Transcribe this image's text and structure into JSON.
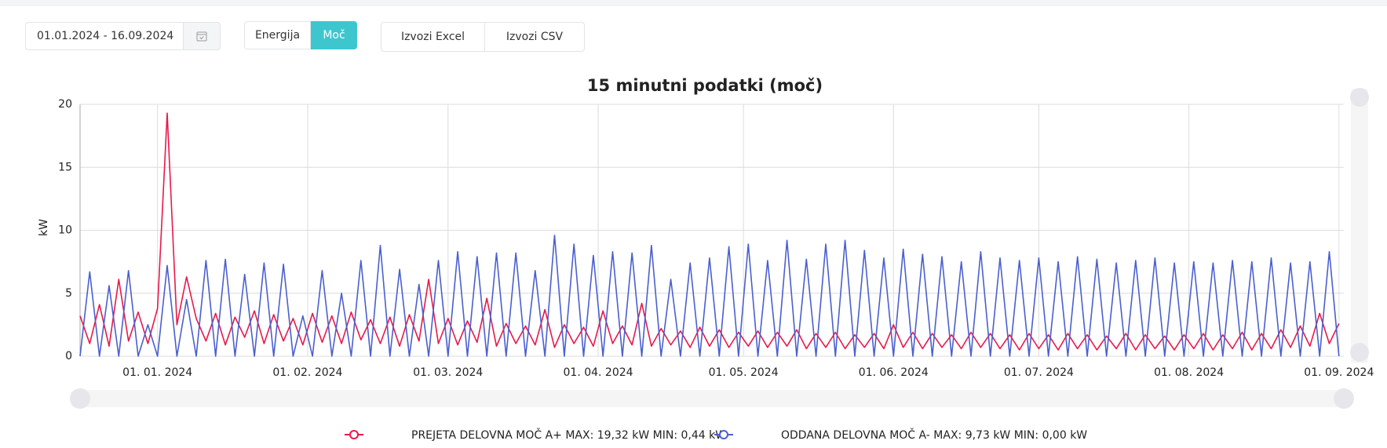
{
  "date_range": "01.01.2024 - 16.09.2024",
  "mode_buttons": [
    "Energija",
    "Moč"
  ],
  "export_buttons": [
    "Izvozi Excel",
    "Izvozi CSV"
  ],
  "chart_data": {
    "type": "line",
    "title": "15 minutni podatki (moč)",
    "y_label": "kW",
    "x": [
      "2023-12-16",
      "2023-12-18",
      "2023-12-20",
      "2023-12-22",
      "2023-12-24",
      "2023-12-26",
      "2023-12-28",
      "2023-12-30",
      "2024-01-01",
      "2024-01-03",
      "2024-01-05",
      "2024-01-07",
      "2024-01-09",
      "2024-01-11",
      "2024-01-13",
      "2024-01-15",
      "2024-01-17",
      "2024-01-19",
      "2024-01-21",
      "2024-01-23",
      "2024-01-25",
      "2024-01-27",
      "2024-01-29",
      "2024-01-31",
      "2024-02-02",
      "2024-02-04",
      "2024-02-06",
      "2024-02-08",
      "2024-02-10",
      "2024-02-12",
      "2024-02-14",
      "2024-02-16",
      "2024-02-18",
      "2024-02-20",
      "2024-02-22",
      "2024-02-24",
      "2024-02-26",
      "2024-02-28",
      "2024-03-01",
      "2024-03-03",
      "2024-03-05",
      "2024-03-07",
      "2024-03-09",
      "2024-03-11",
      "2024-03-13",
      "2024-03-15",
      "2024-03-17",
      "2024-03-19",
      "2024-03-21",
      "2024-03-23",
      "2024-03-25",
      "2024-03-27",
      "2024-03-29",
      "2024-03-31",
      "2024-04-02",
      "2024-04-04",
      "2024-04-06",
      "2024-04-08",
      "2024-04-10",
      "2024-04-12",
      "2024-04-14",
      "2024-04-16",
      "2024-04-18",
      "2024-04-20",
      "2024-04-22",
      "2024-04-24",
      "2024-04-26",
      "2024-04-28",
      "2024-04-30",
      "2024-05-02",
      "2024-05-04",
      "2024-05-06",
      "2024-05-08",
      "2024-05-10",
      "2024-05-12",
      "2024-05-14",
      "2024-05-16",
      "2024-05-18",
      "2024-05-20",
      "2024-05-22",
      "2024-05-24",
      "2024-05-26",
      "2024-05-28",
      "2024-05-30",
      "2024-06-01",
      "2024-06-03",
      "2024-06-05",
      "2024-06-07",
      "2024-06-09",
      "2024-06-11",
      "2024-06-13",
      "2024-06-15",
      "2024-06-17",
      "2024-06-19",
      "2024-06-21",
      "2024-06-23",
      "2024-06-25",
      "2024-06-27",
      "2024-06-29",
      "2024-07-01",
      "2024-07-03",
      "2024-07-05",
      "2024-07-07",
      "2024-07-09",
      "2024-07-11",
      "2024-07-13",
      "2024-07-15",
      "2024-07-17",
      "2024-07-19",
      "2024-07-21",
      "2024-07-23",
      "2024-07-25",
      "2024-07-27",
      "2024-07-29",
      "2024-07-31",
      "2024-08-02",
      "2024-08-04",
      "2024-08-06",
      "2024-08-08",
      "2024-08-10",
      "2024-08-12",
      "2024-08-14",
      "2024-08-16",
      "2024-08-18",
      "2024-08-20",
      "2024-08-22",
      "2024-08-24",
      "2024-08-26",
      "2024-08-28",
      "2024-08-30",
      "2024-09-01"
    ],
    "series": [
      {
        "name": "PREJETA DELOVNA MOČ A+ MAX: 19,32 kW MIN: 0,44 kW",
        "color": "#e8194a",
        "values": [
          3.2,
          1.0,
          4.1,
          0.8,
          6.1,
          1.2,
          3.5,
          1.0,
          3.8,
          19.3,
          2.5,
          6.3,
          3.0,
          1.2,
          3.4,
          0.9,
          3.1,
          1.5,
          3.6,
          1.0,
          3.3,
          1.2,
          3.0,
          0.9,
          3.4,
          1.1,
          3.2,
          1.0,
          3.5,
          1.3,
          2.9,
          1.0,
          3.1,
          0.8,
          3.3,
          1.2,
          6.1,
          1.0,
          3.0,
          0.9,
          2.8,
          1.1,
          4.6,
          0.8,
          2.6,
          1.0,
          2.4,
          0.9,
          3.7,
          0.7,
          2.5,
          1.0,
          2.3,
          0.8,
          3.6,
          1.0,
          2.4,
          0.9,
          4.2,
          0.8,
          2.2,
          0.9,
          2.0,
          0.7,
          2.3,
          0.8,
          2.1,
          0.7,
          1.9,
          0.8,
          2.0,
          0.7,
          1.9,
          0.8,
          2.1,
          0.6,
          1.8,
          0.7,
          1.9,
          0.6,
          1.7,
          0.7,
          1.8,
          0.6,
          2.5,
          0.7,
          1.9,
          0.6,
          1.8,
          0.7,
          1.7,
          0.6,
          1.9,
          0.7,
          1.8,
          0.6,
          1.7,
          0.5,
          1.8,
          0.6,
          1.7,
          0.5,
          1.8,
          0.6,
          1.7,
          0.5,
          1.6,
          0.6,
          1.8,
          0.5,
          1.7,
          0.6,
          1.6,
          0.5,
          1.7,
          0.6,
          1.8,
          0.5,
          1.7,
          0.6,
          1.9,
          0.5,
          1.8,
          0.6,
          2.1,
          0.7,
          2.4,
          0.8,
          3.4,
          1.0,
          2.6
        ]
      },
      {
        "name": "ODDANA DELOVNA MOČ A- MAX: 9,73 kW MIN: 0,00 kW",
        "color": "#4a5fd0",
        "values": [
          0,
          6.7,
          0,
          5.6,
          0,
          6.8,
          0,
          2.5,
          0,
          7.2,
          0,
          4.5,
          0,
          7.6,
          0,
          7.7,
          0,
          6.5,
          0,
          7.4,
          0,
          7.3,
          0,
          3.2,
          0,
          6.8,
          0,
          5.0,
          0,
          7.6,
          0,
          8.8,
          0,
          6.9,
          0,
          5.7,
          0,
          7.6,
          0,
          8.3,
          0,
          7.9,
          0,
          8.2,
          0,
          8.2,
          0,
          6.8,
          0,
          9.6,
          0,
          8.9,
          0,
          8.0,
          0,
          8.3,
          0,
          8.2,
          0,
          8.8,
          0,
          6.1,
          0,
          7.4,
          0,
          7.8,
          0,
          8.7,
          0,
          8.9,
          0,
          7.6,
          0,
          9.2,
          0,
          7.7,
          0,
          8.9,
          0,
          9.2,
          0,
          8.4,
          0,
          7.8,
          0,
          8.5,
          0,
          8.1,
          0,
          7.9,
          0,
          7.5,
          0,
          8.3,
          0,
          7.8,
          0,
          7.6,
          0,
          7.8,
          0,
          7.5,
          0,
          7.9,
          0,
          7.7,
          0,
          7.4,
          0,
          7.6,
          0,
          7.8,
          0,
          7.4,
          0,
          7.5,
          0,
          7.4,
          0,
          7.6,
          0,
          7.5,
          0,
          7.8,
          0,
          7.4,
          0,
          7.5,
          0,
          8.3,
          0
        ]
      }
    ],
    "xlim": [
      "2023-12-16",
      "2024-09-02"
    ],
    "xticks": [
      {
        "value": "2024-01-01",
        "label": "01. 01. 2024"
      },
      {
        "value": "2024-02-01",
        "label": "01. 02. 2024"
      },
      {
        "value": "2024-03-01",
        "label": "01. 03. 2024"
      },
      {
        "value": "2024-04-01",
        "label": "01. 04. 2024"
      },
      {
        "value": "2024-05-01",
        "label": "01. 05. 2024"
      },
      {
        "value": "2024-06-01",
        "label": "01. 06. 2024"
      },
      {
        "value": "2024-07-01",
        "label": "01. 07. 2024"
      },
      {
        "value": "2024-08-01",
        "label": "01. 08. 2024"
      },
      {
        "value": "2024-09-01",
        "label": "01. 09. 2024"
      }
    ],
    "ylim": [
      0,
      20
    ],
    "yticks": [
      0,
      5,
      10,
      15,
      20
    ],
    "grid": true
  }
}
